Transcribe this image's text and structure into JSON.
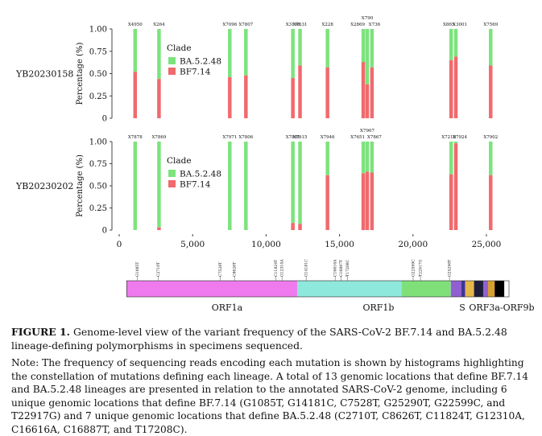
{
  "figure": {
    "samples": [
      {
        "name": "YB20230158",
        "ylabel": "Percentage (%)",
        "yticks": [
          "1.00",
          "0.75",
          "0.50",
          "0.25",
          "0"
        ],
        "legend_title": "Clade",
        "bars": [
          {
            "label": "X4950",
            "pos": 1085,
            "bf": 0.52
          },
          {
            "label": "X264",
            "pos": 2710,
            "bf": 0.44
          },
          {
            "label": "X7096",
            "pos": 7528,
            "bf": 0.46
          },
          {
            "label": "X7807",
            "pos": 8626,
            "bf": 0.48
          },
          {
            "label": "X3198",
            "pos": 11824,
            "bf": 0.45
          },
          {
            "label": "X7631",
            "pos": 12310,
            "bf": 0.59
          },
          {
            "label": "X228",
            "pos": 14181,
            "bf": 0.57
          },
          {
            "label": "X2869",
            "pos": 16616,
            "bf": 0.63
          },
          {
            "label": "X790",
            "pos": 16887,
            "bf": 0.38
          },
          {
            "label": "X736",
            "pos": 17208,
            "bf": 0.57
          },
          {
            "label": "X865",
            "pos": 22599,
            "bf": 0.65
          },
          {
            "label": "X3001",
            "pos": 22917,
            "bf": 0.69
          },
          {
            "label": "X7569",
            "pos": 25290,
            "bf": 0.59
          }
        ]
      },
      {
        "name": "YB20230202",
        "ylabel": "Percentage (%)",
        "yticks": [
          "1.00",
          "0.75",
          "0.50",
          "0.25",
          "0"
        ],
        "legend_title": "Clade",
        "bars": [
          {
            "label": "X7878",
            "pos": 1085,
            "bf": 0.0
          },
          {
            "label": "X7869",
            "pos": 2710,
            "bf": 0.03
          },
          {
            "label": "X7971",
            "pos": 7528,
            "bf": 0.0
          },
          {
            "label": "X7806",
            "pos": 8626,
            "bf": 0.0
          },
          {
            "label": "X7881",
            "pos": 11824,
            "bf": 0.08
          },
          {
            "label": "X7915",
            "pos": 12310,
            "bf": 0.07
          },
          {
            "label": "X7946",
            "pos": 14181,
            "bf": 0.62
          },
          {
            "label": "X7651",
            "pos": 16616,
            "bf": 0.64
          },
          {
            "label": "X7907",
            "pos": 16887,
            "bf": 0.66
          },
          {
            "label": "X7867",
            "pos": 17208,
            "bf": 0.65
          },
          {
            "label": "X7210",
            "pos": 22599,
            "bf": 0.63
          },
          {
            "label": "X7924",
            "pos": 22917,
            "bf": 0.98
          },
          {
            "label": "X7902",
            "pos": 25290,
            "bf": 0.62
          }
        ]
      }
    ],
    "legend": [
      {
        "name": "BA.5.2.48",
        "color": "#7de37d"
      },
      {
        "name": "BF7.14",
        "color": "#f06a6e"
      }
    ],
    "xticks": [
      "0",
      "5,000",
      "10,000",
      "15,000",
      "20,000",
      "25,000"
    ],
    "mutations": [
      {
        "pos": 1085,
        "label": "G1085T"
      },
      {
        "pos": 2710,
        "label": "C2710T"
      },
      {
        "pos": 7528,
        "label": "C7528T"
      },
      {
        "pos": 8626,
        "label": "C8626T"
      },
      {
        "pos": 11824,
        "label": "C11824T"
      },
      {
        "pos": 12310,
        "label": "G12310A"
      },
      {
        "pos": 14181,
        "label": "G14181C"
      },
      {
        "pos": 16616,
        "label": "C16616A"
      },
      {
        "pos": 16887,
        "label": "C16887T"
      },
      {
        "pos": 17208,
        "label": "T17208C"
      },
      {
        "pos": 22599,
        "label": "G22599C"
      },
      {
        "pos": 22917,
        "label": "T22917G"
      },
      {
        "pos": 25290,
        "label": "G25290T"
      }
    ],
    "genes": [
      {
        "name": "ORF1a",
        "start": 266,
        "end": 13483,
        "color": "#ee7aee"
      },
      {
        "name": "ORF1b",
        "start": 13483,
        "end": 21555,
        "color": "#8fe8dc"
      },
      {
        "name": "S",
        "start": 21563,
        "end": 25384,
        "color": "#7fe07a"
      },
      {
        "name": "ORF3a-ORF9b",
        "start": 25393,
        "end": 29533,
        "color": "#9060d0"
      }
    ],
    "colors": {
      "ba": "#7de37d",
      "bf": "#f06a6e"
    }
  },
  "caption": {
    "figure_label": "FIGURE 1.",
    "title_text": "Genome-level view of the variant frequency of the SARS-CoV-2 BF.7.14 and BA.5.2.48 lineage-defining polymorphisms in specimens sequenced.",
    "note": "Note: The frequency of sequencing reads encoding each mutation is shown by histograms highlighting the constellation of mutations defining each lineage. A total of 13 genomic locations that define BF.7.14 and BA.5.2.48 lineages are presented in relation to the annotated SARS-CoV-2 genome, including 6 unique genomic locations that define BF.7.14 (G1085T, G14181C, C7528T, G25290T, G22599C, and T22917G) and 7 unique genomic locations that define BA.5.2.48 (C2710T, C8626T, C11824T, G12310A, C16616A, C16887T, and T17208C)."
  }
}
